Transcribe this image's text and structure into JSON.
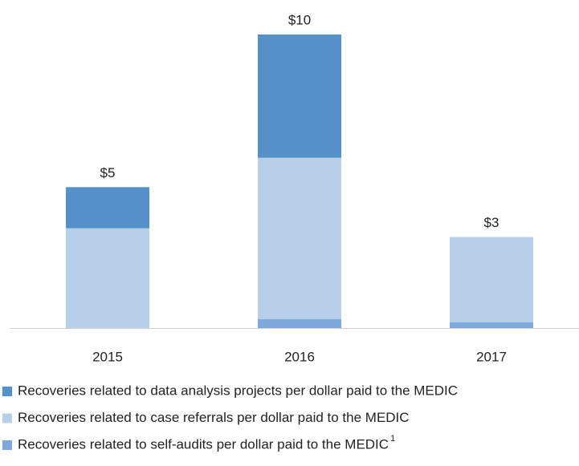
{
  "chart_data": {
    "type": "stacked_bar",
    "categories": [
      "2015",
      "2016",
      "2017"
    ],
    "series": [
      {
        "name": "Recoveries related to data analysis projects per dollar paid to the MEDIC",
        "color": "#5591c9",
        "values": [
          1.4,
          4.2,
          0
        ]
      },
      {
        "name": "Recoveries related to case referrals per dollar paid to the MEDIC",
        "color": "#b8cfea",
        "values": [
          3.4,
          5.5,
          2.9
        ]
      },
      {
        "name": "Recoveries related to self-audits per dollar paid to the MEDIC",
        "color": "#7ea9dc",
        "values": [
          0,
          0.3,
          0.2
        ],
        "name_note": "1"
      }
    ],
    "totals": [
      4.8,
      10.0,
      3.1
    ],
    "total_labels": [
      "$5",
      "$10",
      "$3"
    ]
  }
}
